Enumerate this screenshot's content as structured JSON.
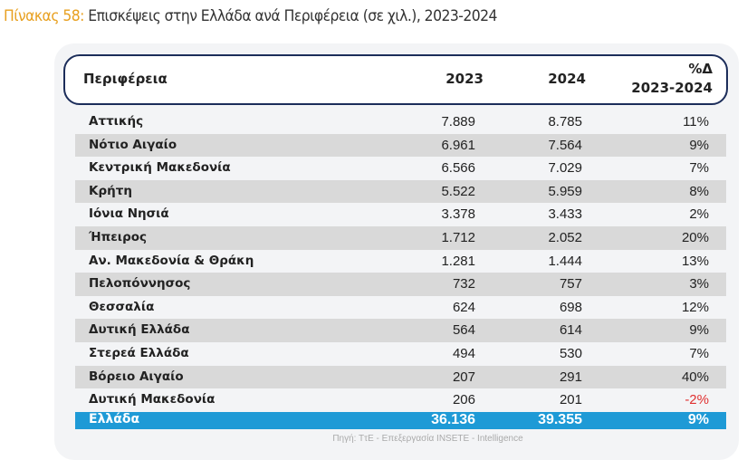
{
  "title": {
    "label": "Πίνακας 58:",
    "text": " Επισκέψεις στην Ελλάδα ανά Περιφέρεια (σε χιλ.), 2023-2024"
  },
  "header": {
    "region": "Περιφέρεια",
    "y2023": "2023",
    "y2024": "2024",
    "pct_line1": "%Δ",
    "pct_line2": "2023-2024"
  },
  "rows": [
    {
      "name": "Αττικής",
      "v2023": "7.889",
      "v2024": "8.785",
      "pct": "11%"
    },
    {
      "name": "Νότιο Αιγαίο",
      "v2023": "6.961",
      "v2024": "7.564",
      "pct": "9%"
    },
    {
      "name": "Κεντρική Μακεδονία",
      "v2023": "6.566",
      "v2024": "7.029",
      "pct": "7%"
    },
    {
      "name": "Κρήτη",
      "v2023": "5.522",
      "v2024": "5.959",
      "pct": "8%"
    },
    {
      "name": "Ιόνια Νησιά",
      "v2023": "3.378",
      "v2024": "3.433",
      "pct": "2%"
    },
    {
      "name": "Ήπειρος",
      "v2023": "1.712",
      "v2024": "2.052",
      "pct": "20%"
    },
    {
      "name": "Αν. Μακεδονία & Θράκη",
      "v2023": "1.281",
      "v2024": "1.444",
      "pct": "13%"
    },
    {
      "name": "Πελοπόννησος",
      "v2023": "732",
      "v2024": "757",
      "pct": "3%"
    },
    {
      "name": "Θεσσαλία",
      "v2023": "624",
      "v2024": "698",
      "pct": "12%"
    },
    {
      "name": "Δυτική Ελλάδα",
      "v2023": "564",
      "v2024": "614",
      "pct": "9%"
    },
    {
      "name": "Στερεά Ελλάδα",
      "v2023": "494",
      "v2024": "530",
      "pct": "7%"
    },
    {
      "name": "Βόρειο Αιγαίο",
      "v2023": "207",
      "v2024": "291",
      "pct": "40%"
    },
    {
      "name": "Δυτική Μακεδονία",
      "v2023": "206",
      "v2024": "201",
      "pct": "-2%"
    }
  ],
  "total": {
    "name": "Ελλάδα",
    "v2023": "36.136",
    "v2024": "39.355",
    "pct": "9%"
  },
  "source": "Πηγή: ΤτΕ - Επεξεργασία INSETE - Intelligence",
  "colors": {
    "accent": "#e8a020",
    "total_bg": "#1e9ad6",
    "header_border": "#1c2d5a",
    "negative": "#e03030"
  }
}
